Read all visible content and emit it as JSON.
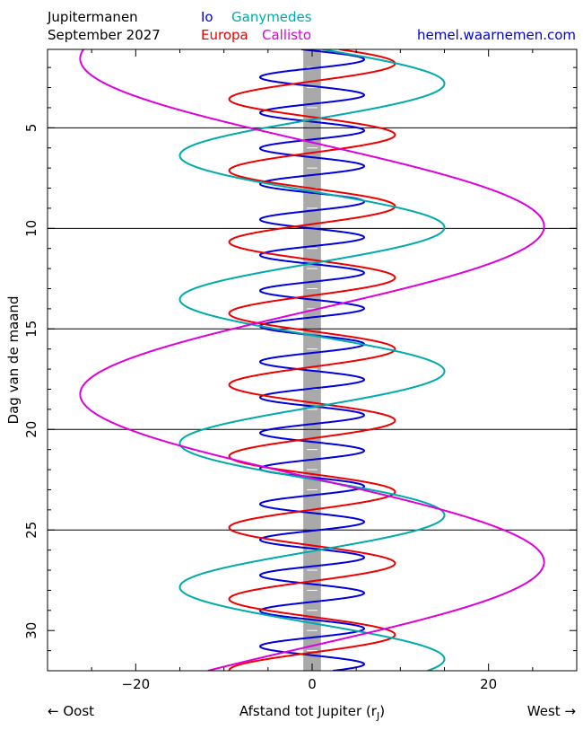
{
  "header": {
    "title_line1": "Jupitermanen",
    "title_line2": "September 2027",
    "website": "hemel.waarnemen.com"
  },
  "colors": {
    "io": "#0000dd",
    "europa": "#ee0000",
    "ganymedes": "#00aaaa",
    "callisto": "#dd00dd",
    "jupiter_band": "#a9a9a9",
    "grid": "#000000"
  },
  "legend": [
    {
      "name": "Io",
      "color": "#0000dd"
    },
    {
      "name": "Ganymedes",
      "color": "#00aaaa"
    },
    {
      "name": "Europa",
      "color": "#ee0000"
    },
    {
      "name": "Callisto",
      "color": "#dd00dd"
    }
  ],
  "footer": {
    "east": "← Oost",
    "west": "West →"
  },
  "chart_data": {
    "type": "line",
    "xlabel": "Afstand tot Jupiter (rJ)",
    "xlabel_main": "Afstand tot Jupiter (r",
    "xlabel_sub": "J",
    "xlabel_close": ")",
    "ylabel": "Dag van de maand",
    "xlim": [
      -30,
      30
    ],
    "ylim": [
      1.1,
      32
    ],
    "y_inverted": true,
    "x_ticks": [
      -20,
      0,
      20
    ],
    "x_tick_labels": [
      "−20",
      "0",
      "20"
    ],
    "y_ticks": [
      5,
      10,
      15,
      20,
      25,
      30
    ],
    "y_tick_labels": [
      "5",
      "10",
      "15",
      "20",
      "25",
      "30"
    ],
    "horizontal_gridlines_at": [
      5,
      10,
      15,
      20,
      25
    ],
    "jupiter_band_halfwidth": 1,
    "series": [
      {
        "name": "Io",
        "amplitude": 5.9,
        "period_days": 1.769,
        "phase_day": 1.6,
        "sign": 1
      },
      {
        "name": "Europa",
        "amplitude": 9.4,
        "period_days": 3.551,
        "phase_day": 1.8,
        "sign": 1
      },
      {
        "name": "Ganymedes",
        "amplitude": 15.0,
        "period_days": 7.155,
        "phase_day": 2.8,
        "sign": 1
      },
      {
        "name": "Callisto",
        "amplitude": 26.3,
        "period_days": 16.69,
        "phase_day": 9.9,
        "sign": 1
      }
    ]
  }
}
